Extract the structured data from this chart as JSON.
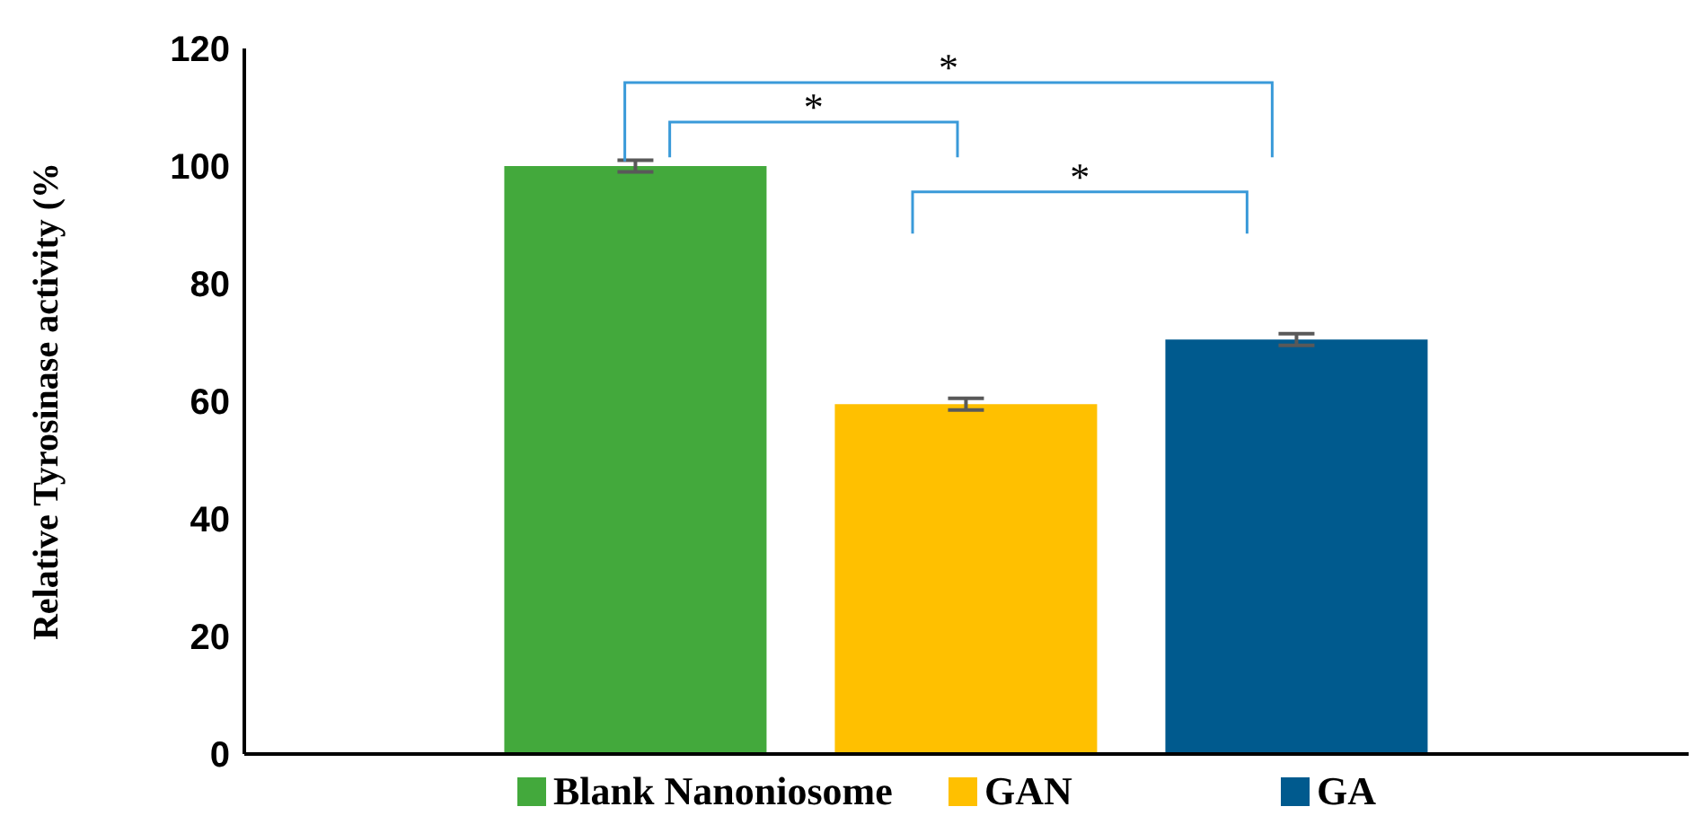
{
  "chart_data": {
    "type": "bar",
    "ylabel": "Relative Tyrosinase  activity (%",
    "categories": [
      null
    ],
    "series": [
      {
        "name": "Blank Nanoniosome",
        "color": "#43a93c",
        "values": [
          100
        ],
        "errors": [
          1
        ]
      },
      {
        "name": "GAN",
        "color": "#ffc000",
        "values": [
          59.5
        ],
        "errors": [
          1
        ]
      },
      {
        "name": "GA",
        "color": "#005a8e",
        "values": [
          70.5
        ],
        "errors": [
          1
        ]
      }
    ],
    "ylim": [
      0,
      120
    ],
    "yticks": [
      0,
      20,
      40,
      60,
      80,
      100,
      120
    ],
    "tick_labels": "y",
    "legend": "bottom",
    "grid": false,
    "annotations": [
      "*",
      "*",
      "*"
    ]
  }
}
